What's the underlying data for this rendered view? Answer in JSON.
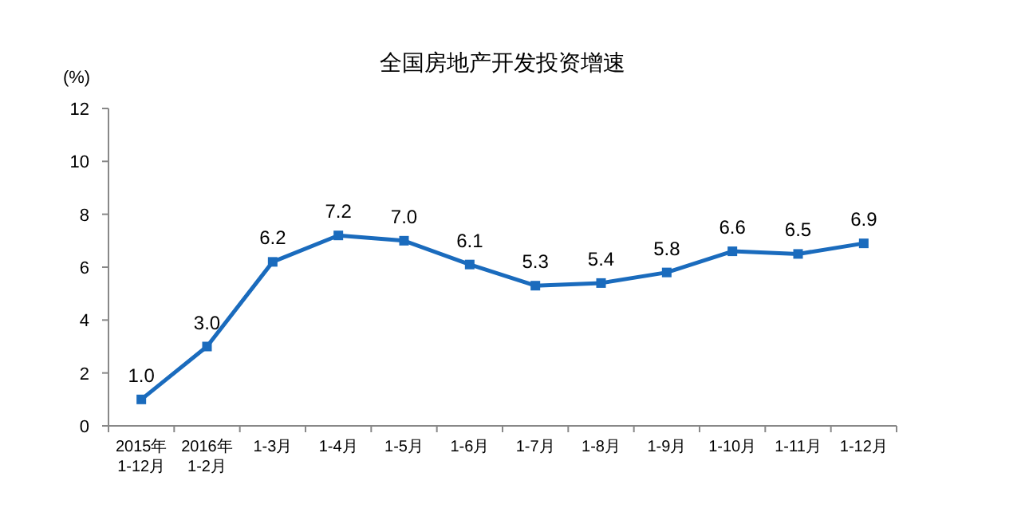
{
  "chart_data": {
    "type": "line",
    "title": "全国房地产开发投资增速",
    "ylabel": "(%)",
    "categories": [
      "2015年\n1-12月",
      "2016年\n1-2月",
      "1-3月",
      "1-4月",
      "1-5月",
      "1-6月",
      "1-7月",
      "1-8月",
      "1-9月",
      "1-10月",
      "1-11月",
      "1-12月"
    ],
    "series": [
      {
        "color": "#1a6bbd",
        "values": [
          1.0,
          3.0,
          6.2,
          7.2,
          7.0,
          6.1,
          5.3,
          5.4,
          5.8,
          6.6,
          6.5,
          6.9
        ],
        "value_labels": [
          "1.0",
          "3.0",
          "6.2",
          "7.2",
          "7.0",
          "6.1",
          "5.3",
          "5.4",
          "5.8",
          "6.6",
          "6.5",
          "6.9"
        ]
      }
    ],
    "ylim": [
      0,
      12
    ],
    "yticks": [
      0,
      2,
      4,
      6,
      8,
      10,
      12
    ],
    "marker": "square",
    "grid": false
  }
}
